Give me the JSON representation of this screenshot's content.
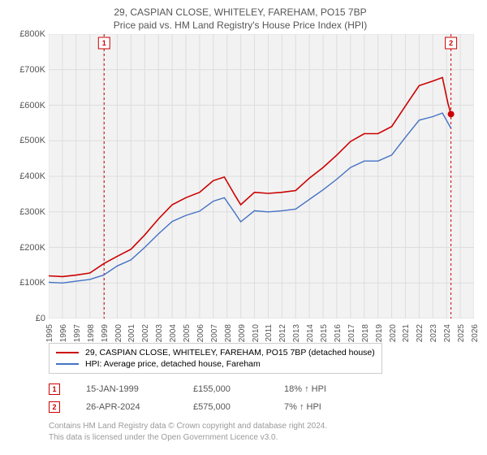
{
  "title_line1": "29, CASPIAN CLOSE, WHITELEY, FAREHAM, PO15 7BP",
  "title_line2": "Price paid vs. HM Land Registry's House Price Index (HPI)",
  "chart": {
    "type": "line",
    "background_color": "#f2f2f2",
    "grid_color": "#dddddd",
    "border_color": "#cccccc",
    "title_fontsize": 12,
    "label_fontsize": 11,
    "label_color": "#555555",
    "x_years": [
      1995,
      1996,
      1997,
      1998,
      1999,
      2000,
      2001,
      2002,
      2003,
      2004,
      2005,
      2006,
      2007,
      2008,
      2009,
      2010,
      2011,
      2012,
      2013,
      2014,
      2015,
      2016,
      2017,
      2018,
      2019,
      2020,
      2021,
      2022,
      2023,
      2024,
      2025,
      2026
    ],
    "ylim": [
      0,
      800000
    ],
    "ytick_step": 100000,
    "ytick_labels": [
      "£0",
      "£100K",
      "£200K",
      "£300K",
      "£400K",
      "£500K",
      "£600K",
      "£700K",
      "£800K"
    ],
    "series": [
      {
        "name": "address-series",
        "label": "29, CASPIAN CLOSE, WHITELEY, FAREHAM, PO15 7BP (detached house)",
        "color": "#cc0000",
        "line_width": 1.6,
        "data": [
          [
            1995.0,
            120
          ],
          [
            1996.0,
            118
          ],
          [
            1997.0,
            122
          ],
          [
            1998.0,
            128
          ],
          [
            1999.04,
            155
          ],
          [
            2000.0,
            175
          ],
          [
            2001.0,
            195
          ],
          [
            2002.0,
            235
          ],
          [
            2003.0,
            280
          ],
          [
            2004.0,
            320
          ],
          [
            2005.0,
            340
          ],
          [
            2006.0,
            355
          ],
          [
            2007.0,
            388
          ],
          [
            2007.8,
            398
          ],
          [
            2008.6,
            345
          ],
          [
            2009.0,
            320
          ],
          [
            2010.0,
            355
          ],
          [
            2011.0,
            352
          ],
          [
            2012.0,
            355
          ],
          [
            2013.0,
            360
          ],
          [
            2014.0,
            395
          ],
          [
            2015.0,
            425
          ],
          [
            2016.0,
            460
          ],
          [
            2017.0,
            498
          ],
          [
            2018.0,
            520
          ],
          [
            2019.0,
            520
          ],
          [
            2020.0,
            540
          ],
          [
            2021.0,
            598
          ],
          [
            2022.0,
            655
          ],
          [
            2023.0,
            668
          ],
          [
            2023.7,
            678
          ],
          [
            2024.1,
            605
          ],
          [
            2024.32,
            575
          ]
        ]
      },
      {
        "name": "hpi-series",
        "label": "HPI: Average price, detached house, Fareham",
        "color": "#4472c4",
        "line_width": 1.4,
        "data": [
          [
            1995.0,
            102
          ],
          [
            1996.0,
            100
          ],
          [
            1997.0,
            105
          ],
          [
            1998.0,
            110
          ],
          [
            1999.0,
            122
          ],
          [
            2000.0,
            148
          ],
          [
            2001.0,
            165
          ],
          [
            2002.0,
            200
          ],
          [
            2003.0,
            238
          ],
          [
            2004.0,
            273
          ],
          [
            2005.0,
            290
          ],
          [
            2006.0,
            302
          ],
          [
            2007.0,
            330
          ],
          [
            2007.8,
            340
          ],
          [
            2008.6,
            295
          ],
          [
            2009.0,
            272
          ],
          [
            2010.0,
            303
          ],
          [
            2011.0,
            300
          ],
          [
            2012.0,
            303
          ],
          [
            2013.0,
            308
          ],
          [
            2014.0,
            335
          ],
          [
            2015.0,
            362
          ],
          [
            2016.0,
            392
          ],
          [
            2017.0,
            425
          ],
          [
            2018.0,
            443
          ],
          [
            2019.0,
            443
          ],
          [
            2020.0,
            460
          ],
          [
            2021.0,
            510
          ],
          [
            2022.0,
            558
          ],
          [
            2023.0,
            568
          ],
          [
            2023.7,
            578
          ],
          [
            2024.32,
            535
          ]
        ]
      }
    ],
    "markers": [
      {
        "id": "1",
        "color": "#cc0000",
        "x_year": 1999.04,
        "date_label": "15-JAN-1999",
        "price_label": "£155,000",
        "pct_label": "18% ↑ HPI",
        "marker_y": 155
      },
      {
        "id": "2",
        "color": "#cc0000",
        "x_year": 2024.32,
        "date_label": "26-APR-2024",
        "price_label": "£575,000",
        "pct_label": "7% ↑ HPI",
        "marker_y": 575
      }
    ]
  },
  "credit_line1": "Contains HM Land Registry data © Crown copyright and database right 2024.",
  "credit_line2": "This data is licensed under the Open Government Licence v3.0."
}
